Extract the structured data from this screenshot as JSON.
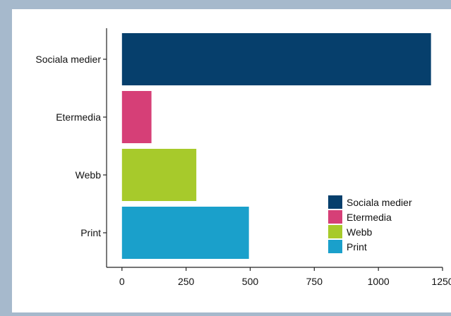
{
  "chart_data": {
    "type": "bar",
    "orientation": "horizontal",
    "categories": [
      "Sociala medier",
      "Etermedia",
      "Webb",
      "Print"
    ],
    "values": [
      1205,
      115,
      290,
      495
    ],
    "colors": [
      "#063f6c",
      "#d63f77",
      "#a7ca2b",
      "#1aa0cb"
    ],
    "xlim": [
      -60,
      1250
    ],
    "xticks": [
      0,
      250,
      500,
      750,
      1000,
      1250
    ],
    "title": "",
    "xlabel": "",
    "ylabel": "",
    "grid": false,
    "legend": {
      "position": "bottom-right",
      "entries": [
        "Sociala medier",
        "Etermedia",
        "Webb",
        "Print"
      ]
    }
  }
}
